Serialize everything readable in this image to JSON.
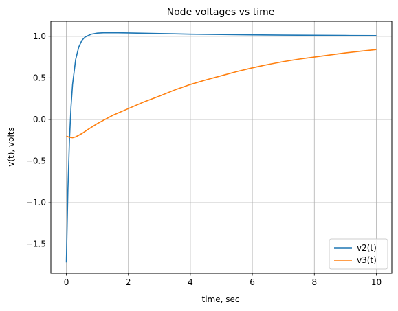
{
  "chart_data": {
    "type": "line",
    "title": "Node voltages vs time",
    "xlabel": "time, sec",
    "ylabel": "v(t), volts",
    "xlim": [
      -0.5,
      10.5
    ],
    "ylim": [
      -1.85,
      1.18
    ],
    "xticks": [
      0,
      2,
      4,
      6,
      8,
      10
    ],
    "xtick_labels": [
      "0",
      "2",
      "4",
      "6",
      "8",
      "10"
    ],
    "yticks": [
      1.0,
      0.5,
      0.0,
      -0.5,
      -1.0,
      -1.5
    ],
    "ytick_labels": [
      "1.0",
      "0.5",
      "0.0",
      "−0.5",
      "−1.0",
      "−1.5"
    ],
    "grid": true,
    "legend_position": "lower-right",
    "series": [
      {
        "name": "v2(t)",
        "color": "#1f77b4",
        "x": [
          0,
          0.05,
          0.1,
          0.15,
          0.2,
          0.3,
          0.4,
          0.5,
          0.6,
          0.8,
          1.0,
          1.2,
          1.5,
          2,
          3,
          4,
          5,
          6,
          7,
          8,
          9,
          10
        ],
        "y": [
          -1.72,
          -0.85,
          -0.25,
          0.15,
          0.42,
          0.72,
          0.87,
          0.95,
          0.99,
          1.025,
          1.038,
          1.042,
          1.043,
          1.04,
          1.033,
          1.026,
          1.021,
          1.017,
          1.014,
          1.012,
          1.01,
          1.008
        ]
      },
      {
        "name": "v3(t)",
        "color": "#ff7f0e",
        "x": [
          0,
          0.1,
          0.2,
          0.3,
          0.5,
          0.7,
          1.0,
          1.5,
          2,
          2.5,
          3,
          3.5,
          4,
          4.5,
          5,
          5.5,
          6,
          6.5,
          7,
          7.5,
          8,
          8.5,
          9,
          9.5,
          10
        ],
        "y": [
          -0.2,
          -0.215,
          -0.22,
          -0.21,
          -0.17,
          -0.12,
          -0.05,
          0.05,
          0.13,
          0.21,
          0.28,
          0.355,
          0.42,
          0.475,
          0.525,
          0.575,
          0.62,
          0.66,
          0.695,
          0.725,
          0.75,
          0.775,
          0.8,
          0.82,
          0.84
        ]
      }
    ]
  }
}
